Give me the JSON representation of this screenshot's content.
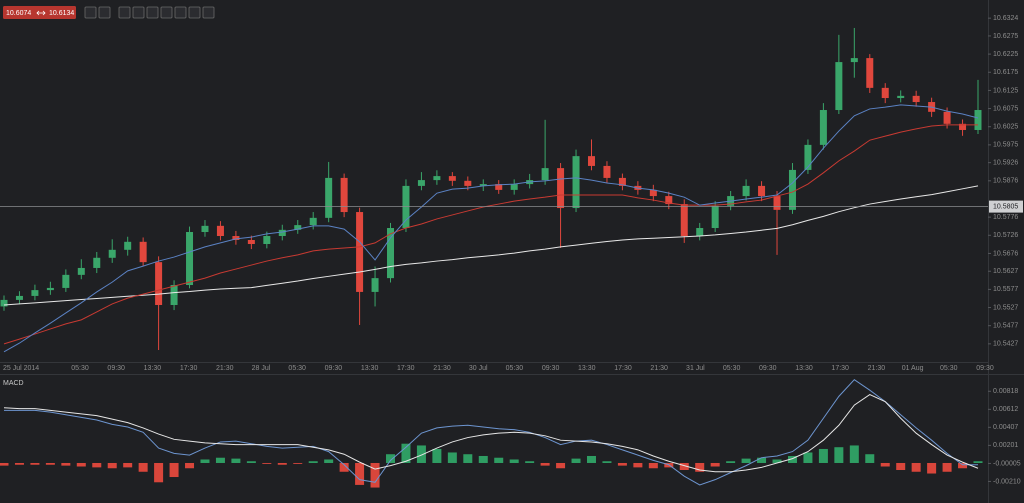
{
  "toolbar": {
    "bid": "10.6074",
    "ask": "10.6134"
  },
  "chart_data": [
    {
      "type": "candlestick",
      "x_labels": [
        "25 Jul 2014",
        "05:30",
        "09:30",
        "13:30",
        "17:30",
        "21:30",
        "28 Jul",
        "05:30",
        "09:30",
        "13:30",
        "17:30",
        "21:30",
        "30 Jul",
        "05:30",
        "09:30",
        "13:30",
        "17:30",
        "21:30",
        "31 Jul",
        "05:30",
        "09:30",
        "13:30",
        "17:30",
        "21:30",
        "01 Aug",
        "05:30",
        "09:30"
      ],
      "ylim": [
        10.5377,
        10.6374
      ],
      "yticks": [
        10.6324,
        10.6275,
        10.6225,
        10.6175,
        10.6125,
        10.6075,
        10.6025,
        10.5975,
        10.5926,
        10.5876,
        10.5776,
        10.5726,
        10.5676,
        10.5627,
        10.5577,
        10.5527,
        10.5477,
        10.5427
      ],
      "last_price": 10.5805,
      "up_color": "#3aa66a",
      "down_color": "#e0473d",
      "open": [
        10.553,
        10.5548,
        10.5559,
        10.5575,
        10.5581,
        10.5617,
        10.5636,
        10.5664,
        10.5686,
        10.5708,
        10.5652,
        10.5534,
        10.5589,
        10.5735,
        10.5752,
        10.5724,
        10.5713,
        10.5702,
        10.5724,
        10.5741,
        10.5754,
        10.5774,
        10.5884,
        10.579,
        10.557,
        10.5608,
        10.5746,
        10.5862,
        10.5878,
        10.5889,
        10.5876,
        10.5862,
        10.5867,
        10.5851,
        10.5867,
        10.5878,
        10.5911,
        10.5801,
        10.5944,
        10.5917,
        10.5884,
        10.5862,
        10.5851,
        10.5834,
        10.5812,
        10.5724,
        10.5746,
        10.5807,
        10.5834,
        10.5862,
        10.5834,
        10.5796,
        10.5906,
        10.5975,
        10.6071,
        10.6203,
        10.6214,
        10.6132,
        10.6104,
        10.611,
        10.6093,
        10.6066,
        10.6033,
        10.6016
      ],
      "high": [
        10.556,
        10.5572,
        10.559,
        10.5598,
        10.5632,
        10.566,
        10.568,
        10.5715,
        10.5722,
        10.572,
        10.5668,
        10.5602,
        10.575,
        10.5768,
        10.5765,
        10.5738,
        10.5725,
        10.5736,
        10.5755,
        10.5768,
        10.579,
        10.5928,
        10.5896,
        10.5802,
        10.564,
        10.576,
        10.588,
        10.59,
        10.5905,
        10.59,
        10.5888,
        10.588,
        10.5878,
        10.588,
        10.5895,
        10.6044,
        10.5925,
        10.5962,
        10.599,
        10.593,
        10.5896,
        10.5875,
        10.5865,
        10.5846,
        10.5825,
        10.576,
        10.582,
        10.5848,
        10.588,
        10.5875,
        10.5848,
        10.5925,
        10.599,
        10.609,
        10.6278,
        10.6297,
        10.6225,
        10.6145,
        10.6125,
        10.6124,
        10.6105,
        10.6078,
        10.6045,
        10.6154
      ],
      "low": [
        10.5518,
        10.5536,
        10.5547,
        10.5562,
        10.557,
        10.5605,
        10.5622,
        10.565,
        10.567,
        10.564,
        10.541,
        10.552,
        10.558,
        10.5722,
        10.5712,
        10.57,
        10.5688,
        10.569,
        10.5712,
        10.573,
        10.5742,
        10.5762,
        10.5776,
        10.5479,
        10.553,
        10.5596,
        10.5735,
        10.585,
        10.5865,
        10.5862,
        10.585,
        10.5848,
        10.584,
        10.5838,
        10.5855,
        10.5865,
        10.5691,
        10.579,
        10.5905,
        10.587,
        10.585,
        10.5838,
        10.582,
        10.5798,
        10.5705,
        10.5712,
        10.5735,
        10.5795,
        10.5822,
        10.582,
        10.5672,
        10.5785,
        10.5895,
        10.5962,
        10.606,
        10.616,
        10.6118,
        10.609,
        10.6092,
        10.608,
        10.6052,
        10.602,
        10.6,
        10.6005
      ],
      "close": [
        10.5548,
        10.5559,
        10.5575,
        10.5581,
        10.5617,
        10.5636,
        10.5664,
        10.5686,
        10.5708,
        10.5652,
        10.5534,
        10.5589,
        10.5735,
        10.5752,
        10.5724,
        10.5713,
        10.5702,
        10.5724,
        10.5741,
        10.5754,
        10.5774,
        10.5884,
        10.579,
        10.557,
        10.5608,
        10.5746,
        10.5862,
        10.5878,
        10.5889,
        10.5876,
        10.5862,
        10.5867,
        10.5851,
        10.5867,
        10.5878,
        10.5911,
        10.5801,
        10.5944,
        10.5917,
        10.5884,
        10.5862,
        10.5851,
        10.5834,
        10.5812,
        10.5724,
        10.5746,
        10.5807,
        10.5834,
        10.5862,
        10.5834,
        10.5796,
        10.5906,
        10.5975,
        10.6071,
        10.6203,
        10.6214,
        10.6132,
        10.6104,
        10.611,
        10.6093,
        10.6066,
        10.6033,
        10.6016,
        10.6071
      ],
      "series": [
        {
          "color": "#e8e8e8",
          "values": [
            10.5534,
            10.5537,
            10.554,
            10.5543,
            10.5546,
            10.5549,
            10.5552,
            10.5555,
            10.5558,
            10.5561,
            10.5564,
            10.5568,
            10.5571,
            10.5575,
            10.5578,
            10.558,
            10.5582,
            10.5588,
            10.5594,
            10.56,
            10.5607,
            10.5613,
            10.5619,
            10.5625,
            10.5632,
            10.564,
            10.5646,
            10.565,
            10.5655,
            10.5659,
            10.5664,
            10.5668,
            10.5672,
            10.5677,
            10.5683,
            10.5688,
            10.5694,
            10.5699,
            10.5704,
            10.5709,
            10.5713,
            10.5716,
            10.5718,
            10.572,
            10.5722,
            10.5724,
            10.5727,
            10.5731,
            10.5735,
            10.574,
            10.5745,
            10.5755,
            10.5767,
            10.5778,
            10.5791,
            10.5802,
            10.5812,
            10.5819,
            10.5826,
            10.5832,
            10.5838,
            10.5846,
            10.5854,
            10.5862
          ]
        },
        {
          "color": "#c83a32",
          "values": [
            10.5427,
            10.544,
            10.5454,
            10.5468,
            10.5482,
            10.5493,
            10.5515,
            10.5537,
            10.5553,
            10.5564,
            10.5575,
            10.5586,
            10.5597,
            10.5608,
            10.5622,
            10.5633,
            10.5644,
            10.5655,
            10.5664,
            10.5672,
            10.5683,
            10.5688,
            10.5691,
            10.5694,
            10.5705,
            10.573,
            10.5746,
            10.5757,
            10.5771,
            10.5782,
            10.5793,
            10.5804,
            10.5812,
            10.582,
            10.5826,
            10.5831,
            10.5837,
            10.5837,
            10.5837,
            10.5837,
            10.5837,
            10.5829,
            10.5823,
            10.5815,
            10.5809,
            10.5809,
            10.5809,
            10.5812,
            10.5818,
            10.5823,
            10.5834,
            10.5845,
            10.5867,
            10.5898,
            10.5931,
            10.5958,
            10.5988,
            10.5999,
            10.601,
            10.6019,
            10.6027,
            10.603,
            10.603,
            10.603
          ]
        },
        {
          "color": "#5b82c4",
          "values": [
            10.5405,
            10.5429,
            10.5457,
            10.5484,
            10.5512,
            10.554,
            10.557,
            10.5597,
            10.5628,
            10.5641,
            10.5655,
            10.5666,
            10.568,
            10.5694,
            10.5705,
            10.5716,
            10.5721,
            10.573,
            10.5735,
            10.5743,
            10.5752,
            10.5752,
            10.5743,
            10.5708,
            10.5658,
            10.5719,
            10.5768,
            10.5804,
            10.5842,
            10.5853,
            10.5856,
            10.5862,
            10.5865,
            10.5867,
            10.5873,
            10.5876,
            10.5881,
            10.5884,
            10.5878,
            10.587,
            10.5865,
            10.5856,
            10.5851,
            10.5842,
            10.5831,
            10.5809,
            10.5815,
            10.582,
            10.5826,
            10.5831,
            10.5837,
            10.587,
            10.5914,
            10.5966,
            10.6013,
            10.6055,
            10.6074,
            10.6079,
            10.6085,
            10.6082,
            10.6079,
            10.6068,
            10.606,
            10.6049
          ]
        }
      ]
    },
    {
      "type": "macd",
      "title": "MACD",
      "ylim": [
        -0.00422,
        0.00992
      ],
      "yticks": [
        0.00818,
        0.00612,
        0.00407,
        0.00201,
        -5e-05,
        {
          "value": -0.0021,
          "label": "-0.00210"
        }
      ],
      "up_color": "#2f9d63",
      "down_color": "#d9463b",
      "histogram": [
        -0.0003,
        -0.0002,
        -0.0002,
        -0.0002,
        -0.0003,
        -0.0004,
        -0.0005,
        -0.0006,
        -0.0005,
        -0.001,
        -0.0022,
        -0.0016,
        -0.0006,
        0.0004,
        0.0006,
        0.0005,
        0.0002,
        -0.0001,
        -0.0002,
        -0.0001,
        0.0002,
        0.0004,
        -0.001,
        -0.0025,
        -0.0028,
        0.001,
        0.0022,
        0.002,
        0.0016,
        0.0012,
        0.001,
        0.0008,
        0.0006,
        0.0004,
        0.0002,
        -0.0003,
        -0.0006,
        0.0005,
        0.0008,
        0.0002,
        -0.0003,
        -0.0005,
        -0.0006,
        -0.0005,
        -0.0008,
        -0.001,
        -0.0004,
        0.0002,
        0.0005,
        0.0006,
        0.0004,
        0.0008,
        0.0012,
        0.0016,
        0.0018,
        0.002,
        0.001,
        -0.0004,
        -0.0008,
        -0.001,
        -0.0012,
        -0.001,
        -0.0006,
        0.0002
      ],
      "series": [
        {
          "color": "#6d95d0",
          "values": [
            0.006,
            0.006,
            0.006,
            0.0058,
            0.0055,
            0.0052,
            0.0049,
            0.0044,
            0.0041,
            0.0035,
            0.0017,
            0.0011,
            0.0009,
            0.0017,
            0.0024,
            0.0025,
            0.0022,
            0.0019,
            0.0017,
            0.0018,
            0.0019,
            0.0013,
            -0.0002,
            -0.0019,
            -0.0022,
            0.0003,
            0.0018,
            0.0034,
            0.004,
            0.0042,
            0.0043,
            0.0041,
            0.0039,
            0.0038,
            0.0035,
            0.0029,
            0.0021,
            0.0025,
            0.0026,
            0.0021,
            0.0015,
            0.0009,
            0.0003,
            -0.0002,
            -0.0015,
            -0.0025,
            -0.0019,
            -0.0011,
            -0.0003,
            0.0006,
            0.0008,
            0.0013,
            0.0026,
            0.0051,
            0.0076,
            0.0095,
            0.0083,
            0.007,
            0.0055,
            0.004,
            0.0026,
            0.0011,
            -0.0002,
            -0.0002
          ]
        },
        {
          "color": "#e6e6e6",
          "values": [
            0.0063,
            0.0062,
            0.0062,
            0.006,
            0.0058,
            0.0056,
            0.0054,
            0.005,
            0.0046,
            0.004,
            0.0033,
            0.0027,
            0.0025,
            0.0023,
            0.0022,
            0.0021,
            0.0021,
            0.0021,
            0.0021,
            0.0021,
            0.0018,
            0.0015,
            0.001,
            0.0001,
            -0.0007,
            -0.0003,
            0.0002,
            0.0009,
            0.0017,
            0.0024,
            0.0029,
            0.0032,
            0.0034,
            0.0035,
            0.0034,
            0.0031,
            0.0026,
            0.0025,
            0.0024,
            0.0022,
            0.0019,
            0.0015,
            0.0008,
            0.0002,
            -0.0003,
            -0.0008,
            -0.001,
            -0.001,
            -0.0008,
            -0.0005,
            0.0,
            0.0005,
            0.0013,
            0.0026,
            0.0043,
            0.0066,
            0.0078,
            0.007,
            0.0051,
            0.0034,
            0.0021,
            0.0009,
            0.0001,
            -0.0006
          ]
        }
      ]
    }
  ]
}
